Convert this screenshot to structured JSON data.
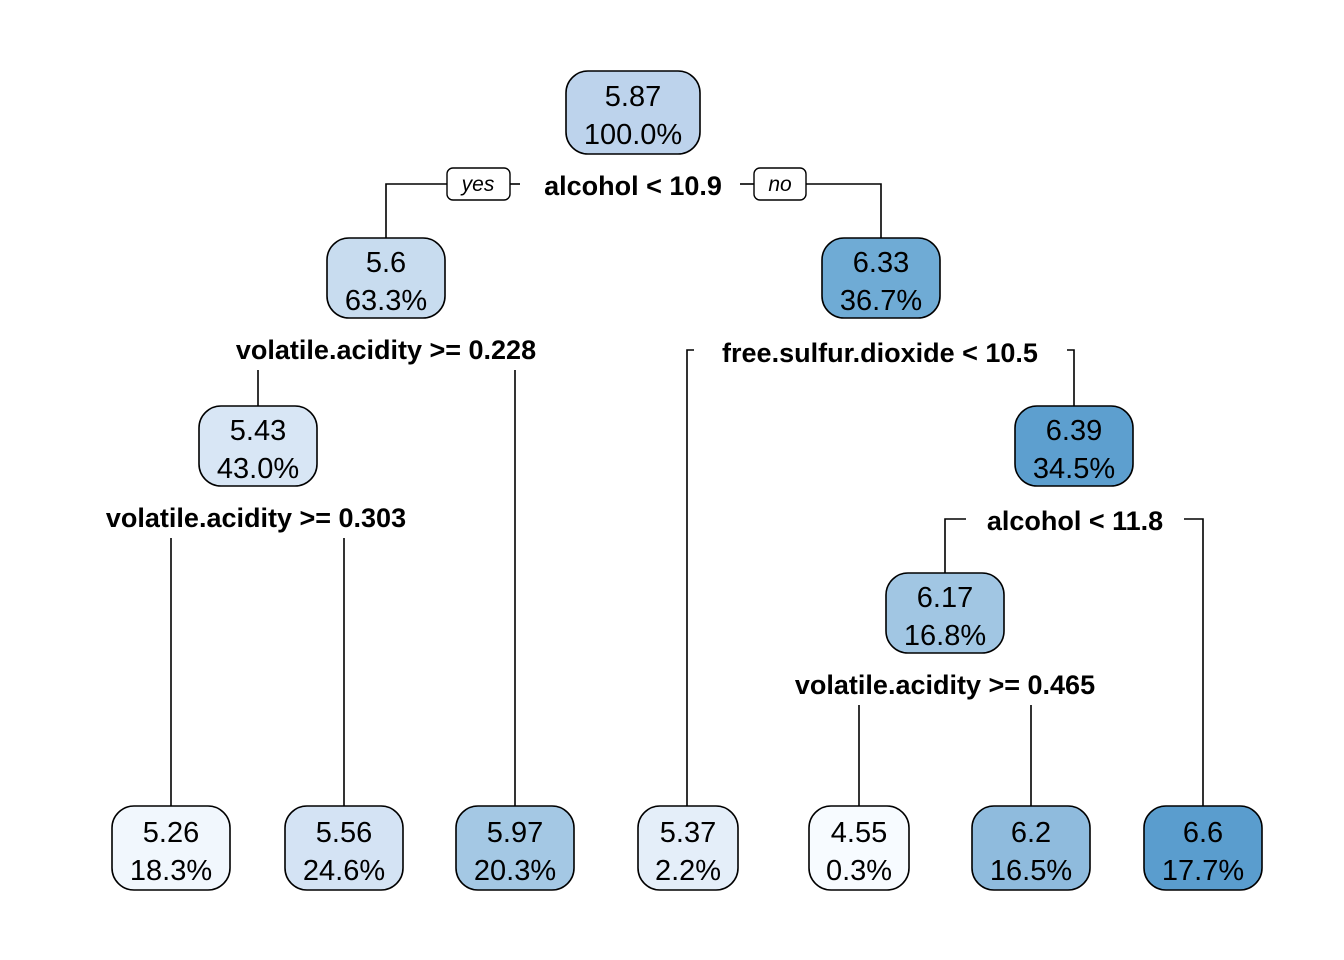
{
  "tree": {
    "labels": {
      "yes": "yes",
      "no": "no"
    },
    "nodes": [
      {
        "id": "n1",
        "value": "5.87",
        "percent": "100.0%",
        "color": "#bdd3ec"
      },
      {
        "id": "n2",
        "value": "5.6",
        "percent": "63.3%",
        "color": "#c8dcef"
      },
      {
        "id": "n3",
        "value": "6.33",
        "percent": "36.7%",
        "color": "#6fabd5"
      },
      {
        "id": "n4",
        "value": "5.43",
        "percent": "43.0%",
        "color": "#d8e6f5"
      },
      {
        "id": "n7",
        "value": "6.39",
        "percent": "34.5%",
        "color": "#5d9fcf"
      },
      {
        "id": "n14",
        "value": "6.17",
        "percent": "16.8%",
        "color": "#a1c6e3"
      },
      {
        "id": "l1",
        "value": "5.26",
        "percent": "18.3%",
        "color": "#f1f7fd"
      },
      {
        "id": "l2",
        "value": "5.56",
        "percent": "24.6%",
        "color": "#d4e3f4"
      },
      {
        "id": "l3",
        "value": "5.97",
        "percent": "20.3%",
        "color": "#a4c8e4"
      },
      {
        "id": "l4",
        "value": "5.37",
        "percent": "2.2%",
        "color": "#e4eef9"
      },
      {
        "id": "l5",
        "value": "4.55",
        "percent": "0.3%",
        "color": "#f7fbff"
      },
      {
        "id": "l6",
        "value": "6.2",
        "percent": "16.5%",
        "color": "#8fbbdd"
      },
      {
        "id": "l7",
        "value": "6.6",
        "percent": "17.7%",
        "color": "#5a9dce"
      }
    ],
    "splits": [
      {
        "id": "s1",
        "rule": "alcohol < 10.9"
      },
      {
        "id": "s2",
        "rule": "volatile.acidity >= 0.228"
      },
      {
        "id": "s3",
        "rule": "free.sulfur.dioxide < 10.5"
      },
      {
        "id": "s4",
        "rule": "volatile.acidity >= 0.303"
      },
      {
        "id": "s5",
        "rule": "alcohol < 11.8"
      },
      {
        "id": "s6",
        "rule": "volatile.acidity >= 0.465"
      }
    ]
  }
}
